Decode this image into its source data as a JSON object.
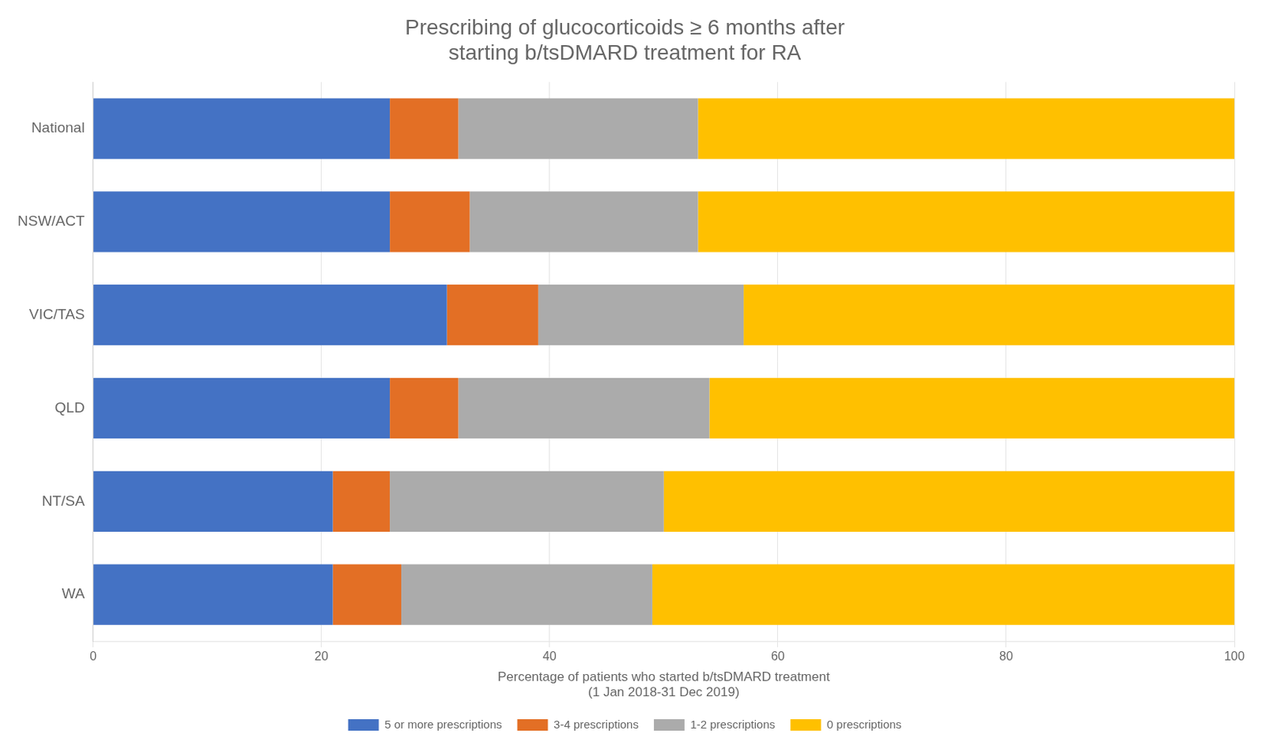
{
  "chart_data": {
    "type": "bar",
    "orientation": "horizontal",
    "stacked": true,
    "title": "Prescribing of glucocorticoids ≥ 6 months after\nstarting b/tsDMARD treatment for RA",
    "xlabel": "Percentage of patients who started b/tsDMARD treatment\n(1 Jan 2018-31 Dec 2019)",
    "categories": [
      "National",
      "NSW/ACT",
      "VIC/TAS",
      "QLD",
      "NT/SA",
      "WA"
    ],
    "series": [
      {
        "name": "5 or more prescriptions",
        "color": "#4472C4",
        "values": [
          26,
          26,
          31,
          26,
          21,
          21
        ]
      },
      {
        "name": "3-4 prescriptions",
        "color": "#E36F25",
        "values": [
          6,
          7,
          8,
          6,
          5,
          6
        ]
      },
      {
        "name": "1-2 prescriptions",
        "color": "#ABABAB",
        "values": [
          21,
          20,
          18,
          22,
          24,
          22
        ]
      },
      {
        "name": "0 prescriptions",
        "color": "#FFC000",
        "values": [
          47,
          47,
          43,
          46,
          50,
          51
        ]
      }
    ],
    "xlim": [
      0,
      100
    ],
    "xticks": [
      0,
      20,
      40,
      60,
      80,
      100
    ],
    "grid": true,
    "legend": "bottom"
  }
}
